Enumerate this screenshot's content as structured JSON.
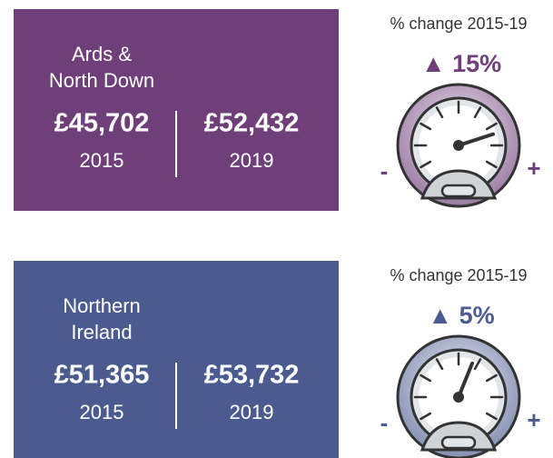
{
  "panels": [
    {
      "name_lines": [
        "Ards &",
        "North Down"
      ],
      "figures": [
        {
          "amount": "£45,702",
          "year": "2015"
        },
        {
          "amount": "£52,432",
          "year": "2019"
        }
      ],
      "change_label": "% change 2015-19",
      "change": "▲ 15%",
      "minus": "-",
      "plus": "+"
    },
    {
      "name_lines": [
        "Northern",
        "Ireland"
      ],
      "figures": [
        {
          "amount": "£51,365",
          "year": "2015"
        },
        {
          "amount": "£53,732",
          "year": "2019"
        }
      ],
      "change_label": "% change 2015-19",
      "change": "▲ 5%",
      "minus": "-",
      "plus": "+"
    }
  ]
}
